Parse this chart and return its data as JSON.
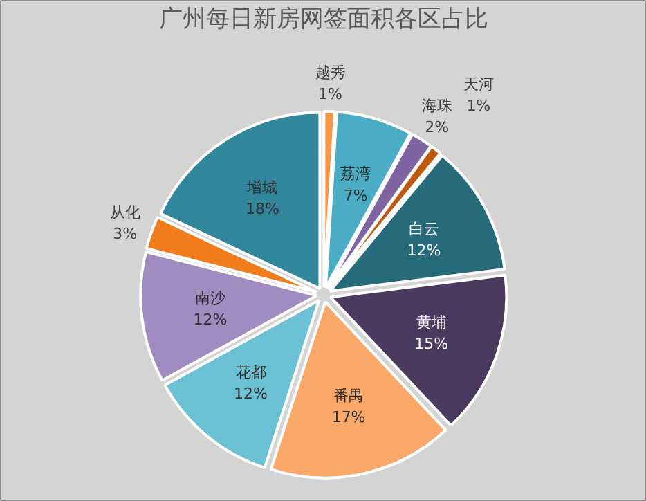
{
  "chart_data": {
    "type": "pie",
    "title": "广州每日新房网签面积各区占比",
    "categories": [
      "越秀",
      "荔湾",
      "海珠",
      "天河",
      "白云",
      "黄埔",
      "番禺",
      "花都",
      "南沙",
      "从化",
      "增城"
    ],
    "values": [
      1,
      7,
      2,
      1,
      12,
      15,
      17,
      12,
      12,
      3,
      18
    ],
    "value_labels": [
      "1%",
      "7%",
      "2%",
      "1%",
      "12%",
      "15%",
      "17%",
      "12%",
      "12%",
      "3%",
      "18%"
    ],
    "colors": [
      "#f79646",
      "#4bacc6",
      "#8064a2",
      "#c0580e",
      "#276a7c",
      "#4a3a5e",
      "#f9a86a",
      "#6cc0d3",
      "#a08cc0",
      "#f07c1c",
      "#31869b"
    ]
  }
}
